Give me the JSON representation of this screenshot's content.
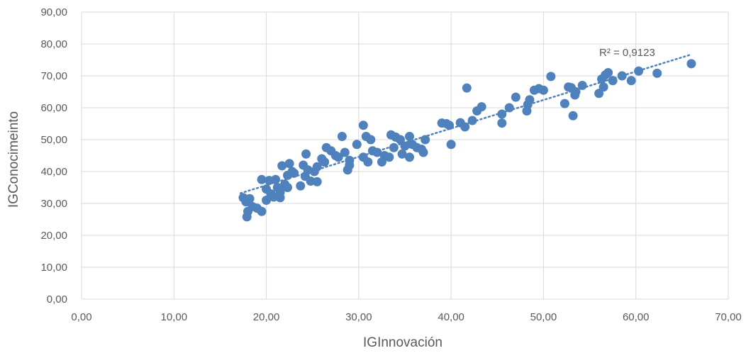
{
  "chart_data": {
    "type": "scatter",
    "title": "",
    "xlabel": "IGInnovación",
    "ylabel": "IGConocimeinto",
    "xlim": [
      0,
      70
    ],
    "ylim": [
      0,
      90
    ],
    "x_ticks": [
      "0,00",
      "10,00",
      "20,00",
      "30,00",
      "40,00",
      "50,00",
      "60,00",
      "70,00"
    ],
    "y_ticks": [
      "0,00",
      "10,00",
      "20,00",
      "30,00",
      "40,00",
      "50,00",
      "60,00",
      "70,00",
      "80,00",
      "90,00"
    ],
    "grid": true,
    "colors": {
      "points": "#4f81bd",
      "trendline": "#4f81bd",
      "grid": "#d9d9d9",
      "text": "#595959"
    },
    "trendline": {
      "type": "linear",
      "from": [
        17.2,
        33.2
      ],
      "to": [
        66,
        76.7
      ],
      "label": "R² = 0,9123"
    },
    "points": [
      [
        17.5,
        31.8
      ],
      [
        17.8,
        30.5
      ],
      [
        18.2,
        31.5
      ],
      [
        17.9,
        25.8
      ],
      [
        18.0,
        27.5
      ],
      [
        18.5,
        29.0
      ],
      [
        19.0,
        28.5
      ],
      [
        19.5,
        27.5
      ],
      [
        19.5,
        37.5
      ],
      [
        20.0,
        34.5
      ],
      [
        20.0,
        31.0
      ],
      [
        20.3,
        37.2
      ],
      [
        20.5,
        33.0
      ],
      [
        20.8,
        32.0
      ],
      [
        21.0,
        37.5
      ],
      [
        21.2,
        35.0
      ],
      [
        21.5,
        33.5
      ],
      [
        21.5,
        31.8
      ],
      [
        21.7,
        41.8
      ],
      [
        22.0,
        36.0
      ],
      [
        22.3,
        38.8
      ],
      [
        22.3,
        35.0
      ],
      [
        22.5,
        42.5
      ],
      [
        22.8,
        40.0
      ],
      [
        23.0,
        39.5
      ],
      [
        23.7,
        35.5
      ],
      [
        24.0,
        42.0
      ],
      [
        24.2,
        38.5
      ],
      [
        24.3,
        45.5
      ],
      [
        24.5,
        40.5
      ],
      [
        24.8,
        37.0
      ],
      [
        25.2,
        40.0
      ],
      [
        25.5,
        41.5
      ],
      [
        25.5,
        36.8
      ],
      [
        26.0,
        44.0
      ],
      [
        26.3,
        43.0
      ],
      [
        26.5,
        47.5
      ],
      [
        27.0,
        46.5
      ],
      [
        27.5,
        45.0
      ],
      [
        27.8,
        44.5
      ],
      [
        28.2,
        51.0
      ],
      [
        28.5,
        46.0
      ],
      [
        28.8,
        40.5
      ],
      [
        29.0,
        43.5
      ],
      [
        29.0,
        42.0
      ],
      [
        29.8,
        48.5
      ],
      [
        30.5,
        54.5
      ],
      [
        30.8,
        51.0
      ],
      [
        30.5,
        44.5
      ],
      [
        31.0,
        43.0
      ],
      [
        31.3,
        50.0
      ],
      [
        31.5,
        46.5
      ],
      [
        32.0,
        46.0
      ],
      [
        32.5,
        43.0
      ],
      [
        32.8,
        45.0
      ],
      [
        33.3,
        44.5
      ],
      [
        33.5,
        51.5
      ],
      [
        33.8,
        47.5
      ],
      [
        34.0,
        50.8
      ],
      [
        34.5,
        50.0
      ],
      [
        34.7,
        45.5
      ],
      [
        35.0,
        48.0
      ],
      [
        35.5,
        44.5
      ],
      [
        35.5,
        51.0
      ],
      [
        35.8,
        48.5
      ],
      [
        36.3,
        47.5
      ],
      [
        36.8,
        47.0
      ],
      [
        37.0,
        46.0
      ],
      [
        37.2,
        50.0
      ],
      [
        39.0,
        55.2
      ],
      [
        39.5,
        55.0
      ],
      [
        39.8,
        54.5
      ],
      [
        40.0,
        48.5
      ],
      [
        41.0,
        55.3
      ],
      [
        41.5,
        54.0
      ],
      [
        41.7,
        66.2
      ],
      [
        42.3,
        56.0
      ],
      [
        42.8,
        59.0
      ],
      [
        43.3,
        60.3
      ],
      [
        45.5,
        58.0
      ],
      [
        45.5,
        55.2
      ],
      [
        46.3,
        60.0
      ],
      [
        47.0,
        63.3
      ],
      [
        48.2,
        59.0
      ],
      [
        48.3,
        61.0
      ],
      [
        48.5,
        62.5
      ],
      [
        49.0,
        65.5
      ],
      [
        49.5,
        66.0
      ],
      [
        50.0,
        65.5
      ],
      [
        50.8,
        69.8
      ],
      [
        52.3,
        61.3
      ],
      [
        52.7,
        66.5
      ],
      [
        53.0,
        66.3
      ],
      [
        53.2,
        57.5
      ],
      [
        53.4,
        64.0
      ],
      [
        53.5,
        65.0
      ],
      [
        54.2,
        67.0
      ],
      [
        56.0,
        64.5
      ],
      [
        56.3,
        69.0
      ],
      [
        56.5,
        66.5
      ],
      [
        56.7,
        70.3
      ],
      [
        57.0,
        71.0
      ],
      [
        57.5,
        68.5
      ],
      [
        58.5,
        70.0
      ],
      [
        59.5,
        68.5
      ],
      [
        60.3,
        71.5
      ],
      [
        62.3,
        70.8
      ],
      [
        66.0,
        73.8
      ]
    ]
  }
}
